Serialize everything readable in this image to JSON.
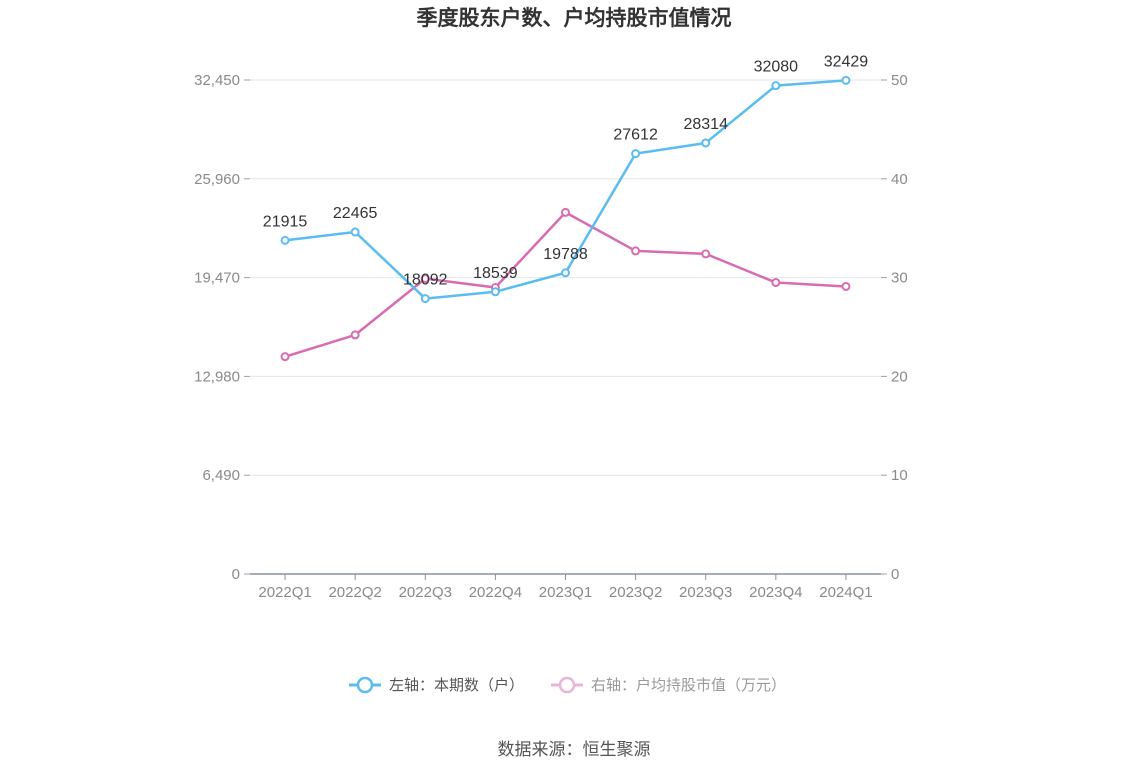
{
  "chart_data": {
    "type": "line",
    "title": "季度股东户数、户均持股市值情况",
    "categories": [
      "2022Q1",
      "2022Q2",
      "2022Q3",
      "2022Q4",
      "2023Q1",
      "2023Q2",
      "2023Q3",
      "2023Q4",
      "2024Q1"
    ],
    "left_axis": {
      "ticks": [
        "0",
        "6,490",
        "12,980",
        "19,470",
        "25,960",
        "32,450"
      ],
      "range": [
        0,
        32450
      ]
    },
    "right_axis": {
      "ticks": [
        "0",
        "10",
        "20",
        "30",
        "40",
        "50"
      ],
      "range": [
        0,
        50
      ]
    },
    "series": [
      {
        "name": "左轴：本期数（户）",
        "axis": "left",
        "color": "#5bbcf0",
        "values": [
          21915,
          22465,
          18092,
          18539,
          19788,
          27612,
          28314,
          32080,
          32429
        ],
        "labels": [
          "21915",
          "22465",
          "18092",
          "18539",
          "19788",
          "27612",
          "28314",
          "32080",
          "32429"
        ]
      },
      {
        "name": "右轴：户均持股市值（万元）",
        "axis": "right",
        "color": "#d86bb1",
        "values": [
          22.0,
          24.2,
          29.9,
          29.0,
          36.6,
          32.7,
          32.4,
          29.5,
          29.1
        ]
      }
    ],
    "grid": true,
    "legend_position": "bottom"
  },
  "source": "数据来源：恒生聚源"
}
